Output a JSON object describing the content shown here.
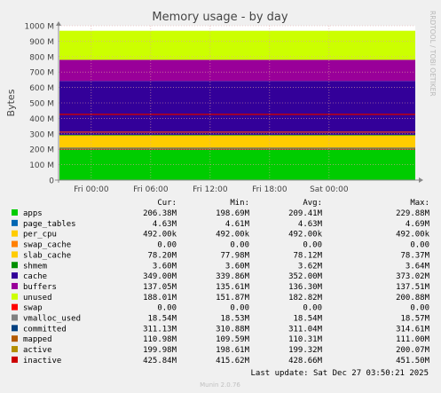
{
  "chart_data": {
    "type": "area",
    "title": "Memory usage - by day",
    "ylabel": "Bytes",
    "xlabel": "",
    "side_label": "RRDTOOL / TOBI OETIKER",
    "ylim": [
      0,
      1000000000
    ],
    "y_ticks": [
      {
        "value": 0,
        "label": "0"
      },
      {
        "value": 100000000,
        "label": "100 M"
      },
      {
        "value": 200000000,
        "label": "200 M"
      },
      {
        "value": 300000000,
        "label": "300 M"
      },
      {
        "value": 400000000,
        "label": "400 M"
      },
      {
        "value": 500000000,
        "label": "500 M"
      },
      {
        "value": 600000000,
        "label": "600 M"
      },
      {
        "value": 700000000,
        "label": "700 M"
      },
      {
        "value": 800000000,
        "label": "800 M"
      },
      {
        "value": 900000000,
        "label": "900 M"
      },
      {
        "value": 1000000000,
        "label": "1000 M"
      }
    ],
    "x_range": [
      "Thu 20:40",
      "Sat 04:40"
    ],
    "x_ticks": [
      {
        "at": "Fri 00:00",
        "label": "Fri 00:00"
      },
      {
        "at": "Fri 06:00",
        "label": "Fri 06:00"
      },
      {
        "at": "Fri 12:00",
        "label": "Fri 12:00"
      },
      {
        "at": "Fri 18:00",
        "label": "Fri 18:00"
      },
      {
        "at": "Sat 00:00",
        "label": "Sat 00:00"
      }
    ],
    "x_hours": [
      -3.3,
      32.7
    ],
    "x_tick_hours": [
      0,
      6,
      12,
      18,
      24
    ],
    "grid": true,
    "stacked_series": [
      {
        "name": "apps",
        "color": "#00cc00",
        "value": 206380000
      },
      {
        "name": "page_tables",
        "color": "#0066b3",
        "value": 4630000
      },
      {
        "name": "per_cpu",
        "color": "#ff8000",
        "value": 492000
      },
      {
        "name": "swap_cache",
        "color": "#ffcc00",
        "value": 0
      },
      {
        "name": "slab_cache",
        "color": "#ffcc00",
        "value": 78200000
      },
      {
        "name": "shmem",
        "color": "#008f00",
        "value": 3600000
      },
      {
        "name": "cache",
        "color": "#330099",
        "value": 349000000
      },
      {
        "name": "buffers",
        "color": "#990099",
        "value": 137050000
      },
      {
        "name": "unused",
        "color": "#ccff00",
        "value": 188010000
      }
    ],
    "line_series": [
      {
        "name": "committed",
        "color": "#cc3333",
        "value": 311130000
      },
      {
        "name": "inactive",
        "color": "#cc0000",
        "value": 425840000
      },
      {
        "name": "active",
        "color": "#cc3333",
        "value": 199980000
      }
    ],
    "headers": {
      "cur": "Cur:",
      "min": "Min:",
      "avg": "Avg:",
      "max": "Max:"
    },
    "legend": [
      {
        "name": "apps",
        "color": "#00cc00",
        "cur": "206.38M",
        "min": "198.69M",
        "avg": "209.41M",
        "max": "229.88M"
      },
      {
        "name": "page_tables",
        "color": "#0066b3",
        "cur": "4.63M",
        "min": "4.61M",
        "avg": "4.63M",
        "max": "4.69M"
      },
      {
        "name": "per_cpu",
        "color": "#ffcc00",
        "cur": "492.00k",
        "min": "492.00k",
        "avg": "492.00k",
        "max": "492.00k"
      },
      {
        "name": "swap_cache",
        "color": "#ff8000",
        "cur": "0.00",
        "min": "0.00",
        "avg": "0.00",
        "max": "0.00"
      },
      {
        "name": "slab_cache",
        "color": "#ffcc00",
        "cur": "78.20M",
        "min": "77.98M",
        "avg": "78.12M",
        "max": "78.37M"
      },
      {
        "name": "shmem",
        "color": "#008f00",
        "cur": "3.60M",
        "min": "3.60M",
        "avg": "3.62M",
        "max": "3.64M"
      },
      {
        "name": "cache",
        "color": "#330099",
        "cur": "349.00M",
        "min": "339.86M",
        "avg": "352.00M",
        "max": "373.02M"
      },
      {
        "name": "buffers",
        "color": "#990099",
        "cur": "137.05M",
        "min": "135.61M",
        "avg": "136.30M",
        "max": "137.51M"
      },
      {
        "name": "unused",
        "color": "#ccff00",
        "cur": "188.01M",
        "min": "151.87M",
        "avg": "182.82M",
        "max": "200.88M"
      },
      {
        "name": "swap",
        "color": "#ff0000",
        "cur": "0.00",
        "min": "0.00",
        "avg": "0.00",
        "max": "0.00"
      },
      {
        "name": "vmalloc_used",
        "color": "#808080",
        "cur": "18.54M",
        "min": "18.53M",
        "avg": "18.54M",
        "max": "18.57M"
      },
      {
        "name": "committed",
        "color": "#004080",
        "cur": "311.13M",
        "min": "310.88M",
        "avg": "311.04M",
        "max": "314.61M"
      },
      {
        "name": "mapped",
        "color": "#b35a00",
        "cur": "110.98M",
        "min": "109.59M",
        "avg": "110.31M",
        "max": "111.00M"
      },
      {
        "name": "active",
        "color": "#b38f00",
        "cur": "199.98M",
        "min": "198.61M",
        "avg": "199.32M",
        "max": "200.07M"
      },
      {
        "name": "inactive",
        "color": "#cc0000",
        "cur": "425.84M",
        "min": "415.62M",
        "avg": "428.66M",
        "max": "451.50M"
      }
    ],
    "last_update": "Last update: Sat Dec 27 03:50:21 2025",
    "footer": "Munin 2.0.76"
  }
}
